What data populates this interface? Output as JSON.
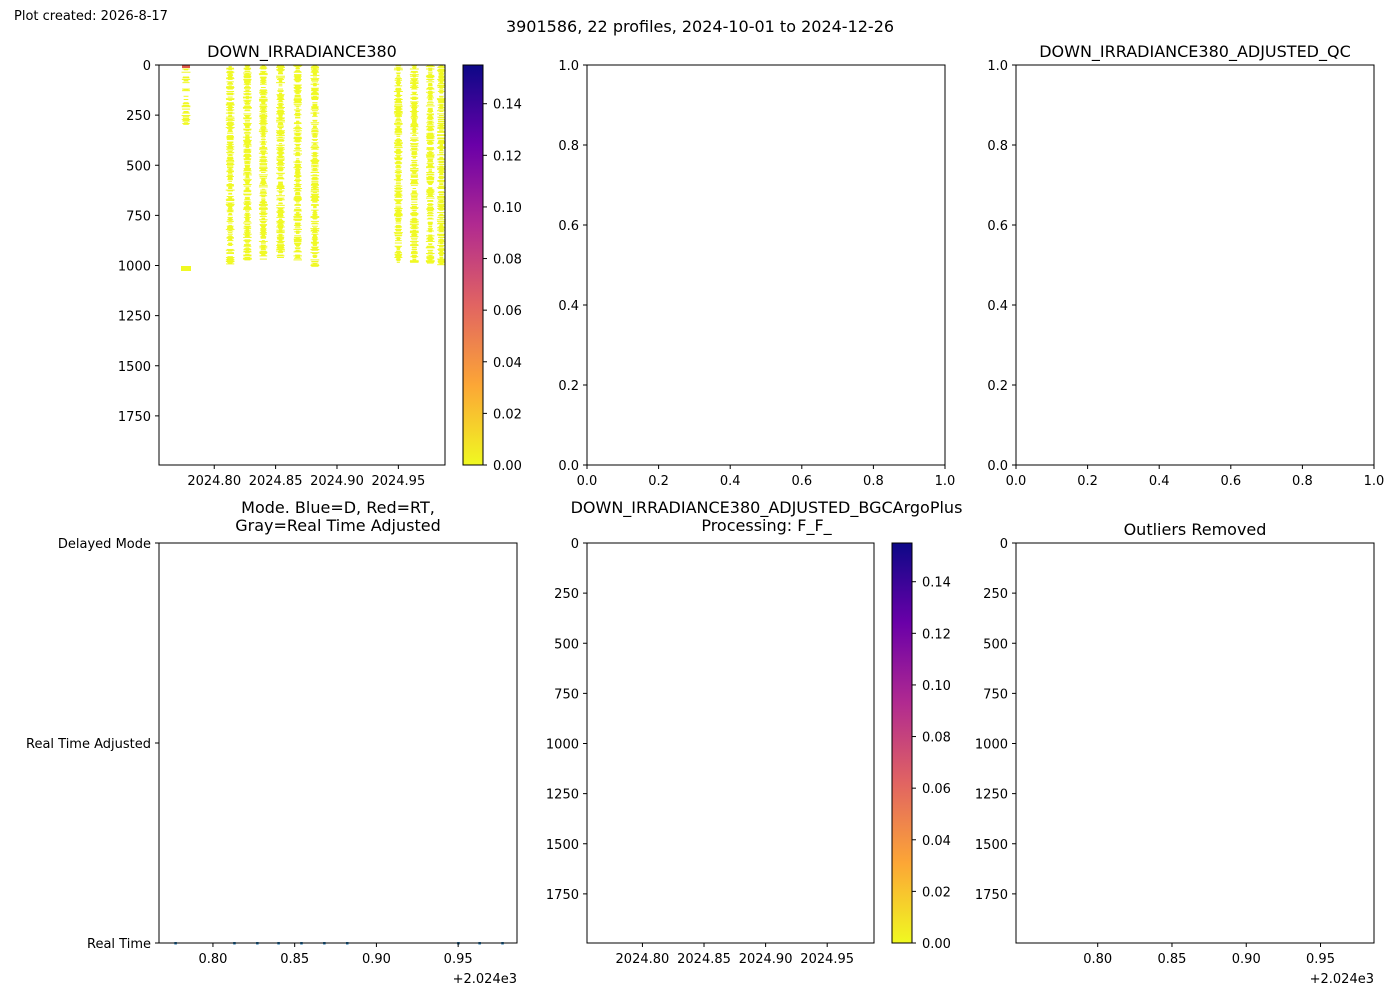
{
  "plot_created": "Plot created: 2026-8-17",
  "suptitle": "3901586, 22 profiles, 2024-10-01 to 2024-12-26",
  "colors": {
    "irradiance_lines": "#f0f921",
    "irradiance_top_tick": "#e0584b",
    "mode_points": "#1f77b4",
    "colormap": [
      "#f0f921",
      "#fca636",
      "#e16462",
      "#b12a90",
      "#6a00a8",
      "#0d0887"
    ]
  },
  "chart_data": [
    {
      "id": "raw",
      "type": "heatmap",
      "title": "DOWN_IRRADIANCE380",
      "xlim": [
        2024.755,
        2024.988
      ],
      "ylim": [
        1995,
        0
      ],
      "x_ticks": [
        2024.8,
        2024.85,
        2024.9,
        2024.95
      ],
      "x_tick_labels": [
        "2024.80",
        "2024.85",
        "2024.90",
        "2024.95"
      ],
      "x_offset_text": "",
      "y_ticks": [
        0,
        250,
        500,
        750,
        1000,
        1250,
        1500,
        1750
      ],
      "y_tick_labels": [
        "0",
        "250",
        "500",
        "750",
        "1000",
        "1250",
        "1500",
        "1750"
      ],
      "colorbar": {
        "min": 0.0,
        "max": 0.155,
        "ticks": [
          0.0,
          0.02,
          0.04,
          0.06,
          0.08,
          0.1,
          0.12,
          0.14
        ],
        "tick_labels": [
          "0.00",
          "0.02",
          "0.04",
          "0.06",
          "0.08",
          "0.10",
          "0.12",
          "0.14"
        ]
      },
      "profiles": [
        {
          "x": 2024.777,
          "max_depth": 300,
          "extra": [
            1005,
            1025
          ]
        },
        {
          "x": 2024.813,
          "max_depth": 1000
        },
        {
          "x": 2024.827,
          "max_depth": 975
        },
        {
          "x": 2024.84,
          "max_depth": 975
        },
        {
          "x": 2024.854,
          "max_depth": 970
        },
        {
          "x": 2024.868,
          "max_depth": 975
        },
        {
          "x": 2024.882,
          "max_depth": 1005
        },
        {
          "x": 2024.95,
          "max_depth": 995
        },
        {
          "x": 2024.963,
          "max_depth": 985
        },
        {
          "x": 2024.976,
          "max_depth": 990
        },
        {
          "x": 2024.985,
          "max_depth": 1000
        }
      ],
      "value": 0.0
    },
    {
      "id": "blank-middle",
      "type": "scatter",
      "title": "",
      "xlim": [
        0,
        1
      ],
      "ylim": [
        0,
        1
      ],
      "x_ticks": [
        0,
        0.2,
        0.4,
        0.6,
        0.8,
        1.0
      ],
      "x_tick_labels": [
        "0.0",
        "0.2",
        "0.4",
        "0.6",
        "0.8",
        "1.0"
      ],
      "y_ticks": [
        0,
        0.2,
        0.4,
        0.6,
        0.8,
        1.0
      ],
      "y_tick_labels": [
        "0.0",
        "0.2",
        "0.4",
        "0.6",
        "0.8",
        "1.0"
      ]
    },
    {
      "id": "adjusted-qc",
      "type": "scatter",
      "title": "DOWN_IRRADIANCE380_ADJUSTED_QC",
      "xlim": [
        0,
        1
      ],
      "ylim": [
        0,
        1
      ],
      "x_ticks": [
        0,
        0.2,
        0.4,
        0.6,
        0.8,
        1.0
      ],
      "x_tick_labels": [
        "0.0",
        "0.2",
        "0.4",
        "0.6",
        "0.8",
        "1.0"
      ],
      "y_ticks": [
        0,
        0.2,
        0.4,
        0.6,
        0.8,
        1.0
      ],
      "y_tick_labels": [
        "0.0",
        "0.2",
        "0.4",
        "0.6",
        "0.8",
        "1.0"
      ]
    },
    {
      "id": "mode",
      "type": "scatter",
      "title": [
        "Mode. Blue=D, Red=RT,",
        "Gray=Real Time Adjusted"
      ],
      "xlim": [
        2024.767,
        2024.986
      ],
      "ylim": [
        0,
        2
      ],
      "x_ticks": [
        2024.8,
        2024.85,
        2024.9,
        2024.95
      ],
      "x_tick_labels": [
        "0.80",
        "0.85",
        "0.90",
        "0.95"
      ],
      "x_offset_text": "+2.024e3",
      "y_ticks": [
        0,
        1,
        2
      ],
      "y_tick_labels": [
        "Real Time",
        "Real Time Adjusted",
        "Delayed Mode"
      ],
      "points_x": [
        2024.777,
        2024.813,
        2024.827,
        2024.84,
        2024.854,
        2024.868,
        2024.882,
        2024.95,
        2024.963,
        2024.977
      ],
      "points_y": 0
    },
    {
      "id": "bgc-argo-plus",
      "type": "heatmap",
      "title": [
        "DOWN_IRRADIANCE380_ADJUSTED_BGCArgoPlus",
        "Processing: F_F_"
      ],
      "xlim": [
        2024.755,
        2024.988
      ],
      "ylim": [
        1995,
        0
      ],
      "x_ticks": [
        2024.8,
        2024.85,
        2024.9,
        2024.95
      ],
      "x_tick_labels": [
        "2024.80",
        "2024.85",
        "2024.90",
        "2024.95"
      ],
      "y_ticks": [
        0,
        250,
        500,
        750,
        1000,
        1250,
        1500,
        1750
      ],
      "y_tick_labels": [
        "0",
        "250",
        "500",
        "750",
        "1000",
        "1250",
        "1500",
        "1750"
      ],
      "colorbar": {
        "min": 0.0,
        "max": 0.155,
        "ticks": [
          0.0,
          0.02,
          0.04,
          0.06,
          0.08,
          0.1,
          0.12,
          0.14
        ],
        "tick_labels": [
          "0.00",
          "0.02",
          "0.04",
          "0.06",
          "0.08",
          "0.10",
          "0.12",
          "0.14"
        ]
      }
    },
    {
      "id": "outliers",
      "type": "scatter",
      "title": "Outliers Removed",
      "xlim": [
        2024.745,
        2024.986
      ],
      "ylim": [
        1995,
        0
      ],
      "x_ticks": [
        2024.8,
        2024.85,
        2024.9,
        2024.95
      ],
      "x_tick_labels": [
        "0.80",
        "0.85",
        "0.90",
        "0.95"
      ],
      "x_offset_text": "+2.024e3",
      "y_ticks": [
        0,
        250,
        500,
        750,
        1000,
        1250,
        1500,
        1750
      ],
      "y_tick_labels": [
        "0",
        "250",
        "500",
        "750",
        "1000",
        "1250",
        "1500",
        "1750"
      ]
    }
  ]
}
